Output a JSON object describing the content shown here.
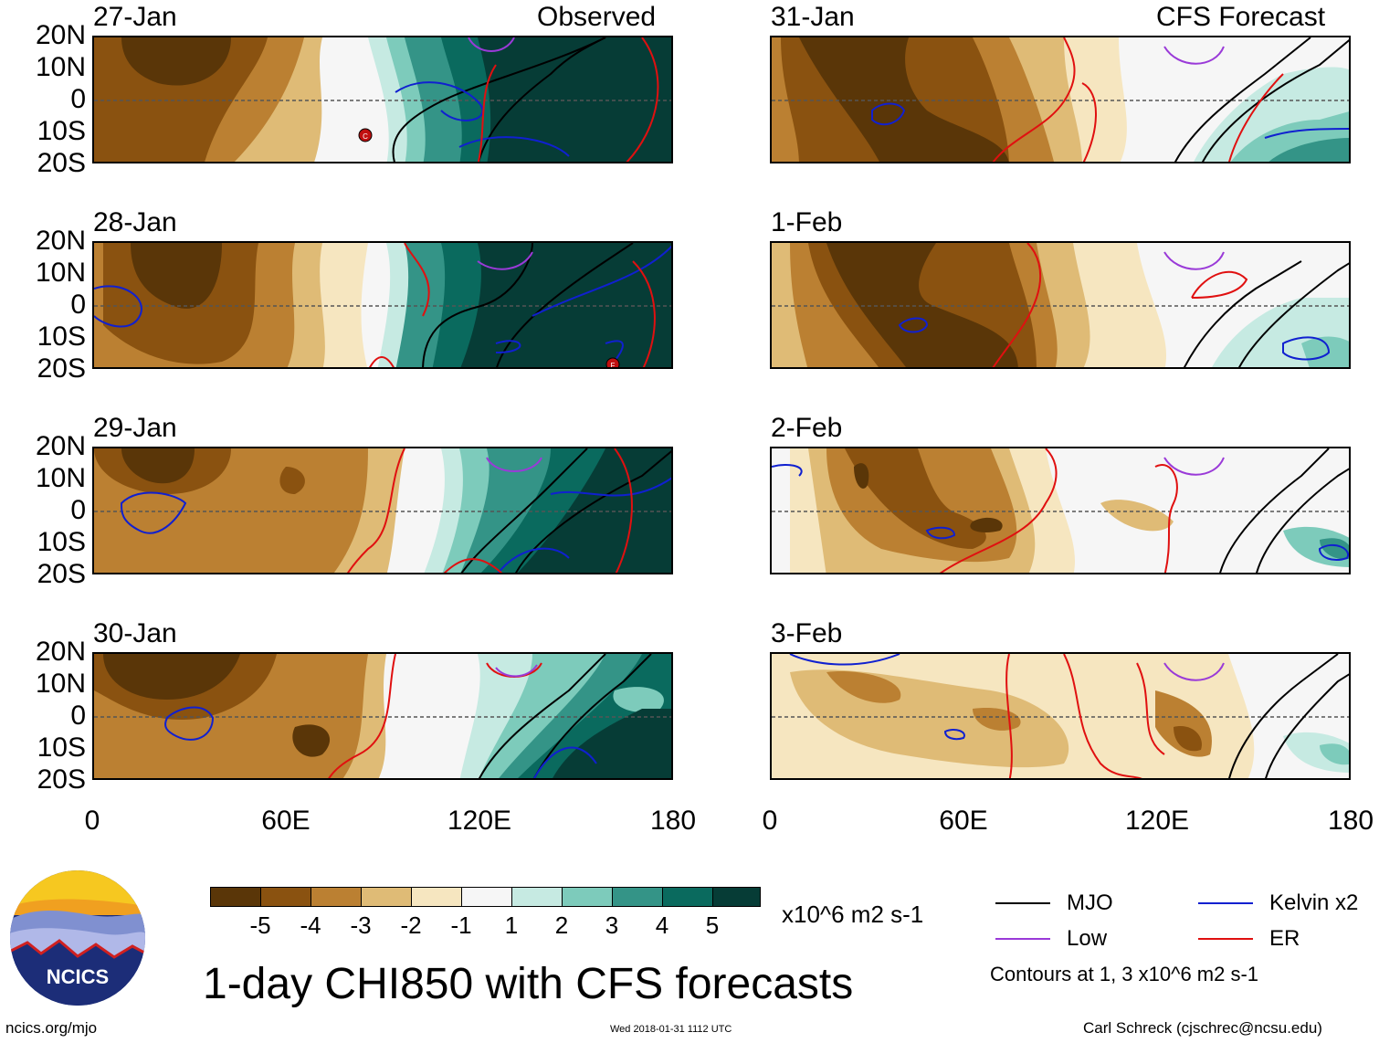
{
  "figure": {
    "title": "1-day CHI850 with CFS forecasts",
    "units_label": "x10^6 m2 s-1",
    "contour_note": "Contours at 1, 3 x10^6 m2 s-1",
    "website": "ncics.org/mjo",
    "timestamp": "Wed 2018-01-31 1112 UTC",
    "author": "Carl Schreck (cjschrec@ncsu.edu)",
    "logo_text": "NCICS"
  },
  "columns": {
    "left_header": "Observed",
    "right_header": "CFS Forecast"
  },
  "axes": {
    "y_ticks": [
      "20N",
      "10N",
      "0",
      "10S",
      "20S"
    ],
    "x_ticks": [
      "0",
      "60E",
      "120E",
      "180"
    ]
  },
  "panels_left": [
    {
      "date": "27-Jan"
    },
    {
      "date": "28-Jan"
    },
    {
      "date": "29-Jan"
    },
    {
      "date": "30-Jan"
    }
  ],
  "panels_right": [
    {
      "date": "31-Jan"
    },
    {
      "date": "1-Feb"
    },
    {
      "date": "2-Feb"
    },
    {
      "date": "3-Feb"
    }
  ],
  "colorbar": {
    "labels": [
      "-5",
      "-4",
      "-3",
      "-2",
      "-1",
      "1",
      "2",
      "3",
      "4",
      "5"
    ],
    "colors": [
      "#5a3608",
      "#8a5210",
      "#bb8032",
      "#dfbb76",
      "#f6e6c0",
      "#f6f6f6",
      "#c6eae2",
      "#7dcbbb",
      "#349487",
      "#0a6a5e",
      "#063c36"
    ]
  },
  "legend": [
    {
      "label": "MJO",
      "color": "#000000"
    },
    {
      "label": "Kelvin x2",
      "color": "#1020d0"
    },
    {
      "label": "Low",
      "color": "#9a3ad8"
    },
    {
      "label": "ER",
      "color": "#e01010"
    }
  ],
  "markers": {
    "storm_c": "C",
    "storm_f": "F"
  }
}
